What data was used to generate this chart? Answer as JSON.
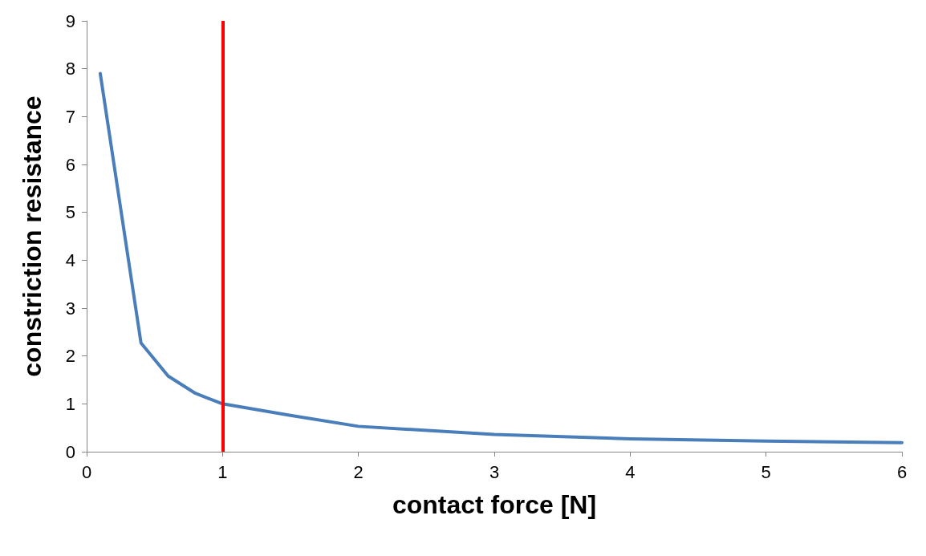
{
  "chart_data": {
    "type": "line",
    "xlabel": "contact force [N]",
    "ylabel": "constriction resistance",
    "x": [
      0.1,
      0.4,
      0.6,
      0.8,
      1,
      1.5,
      2,
      3,
      4,
      5,
      6
    ],
    "series": [
      {
        "color": "#4a7ebb",
        "values": [
          7.9,
          2.27,
          1.58,
          1.22,
          1.0,
          0.76,
          0.53,
          0.36,
          0.27,
          0.22,
          0.19
        ]
      }
    ],
    "xlim": [
      0,
      6
    ],
    "xticks": [
      0,
      1,
      2,
      3,
      4,
      5,
      6
    ],
    "ylim": [
      0,
      9
    ],
    "yticks": [
      0,
      1,
      2,
      3,
      4,
      5,
      6,
      7,
      8,
      9
    ],
    "ref_lines": [
      {
        "axis": "x",
        "value": 1,
        "color": "#ff0000"
      }
    ],
    "grid": false,
    "marker": "none",
    "line_style": "solid"
  }
}
